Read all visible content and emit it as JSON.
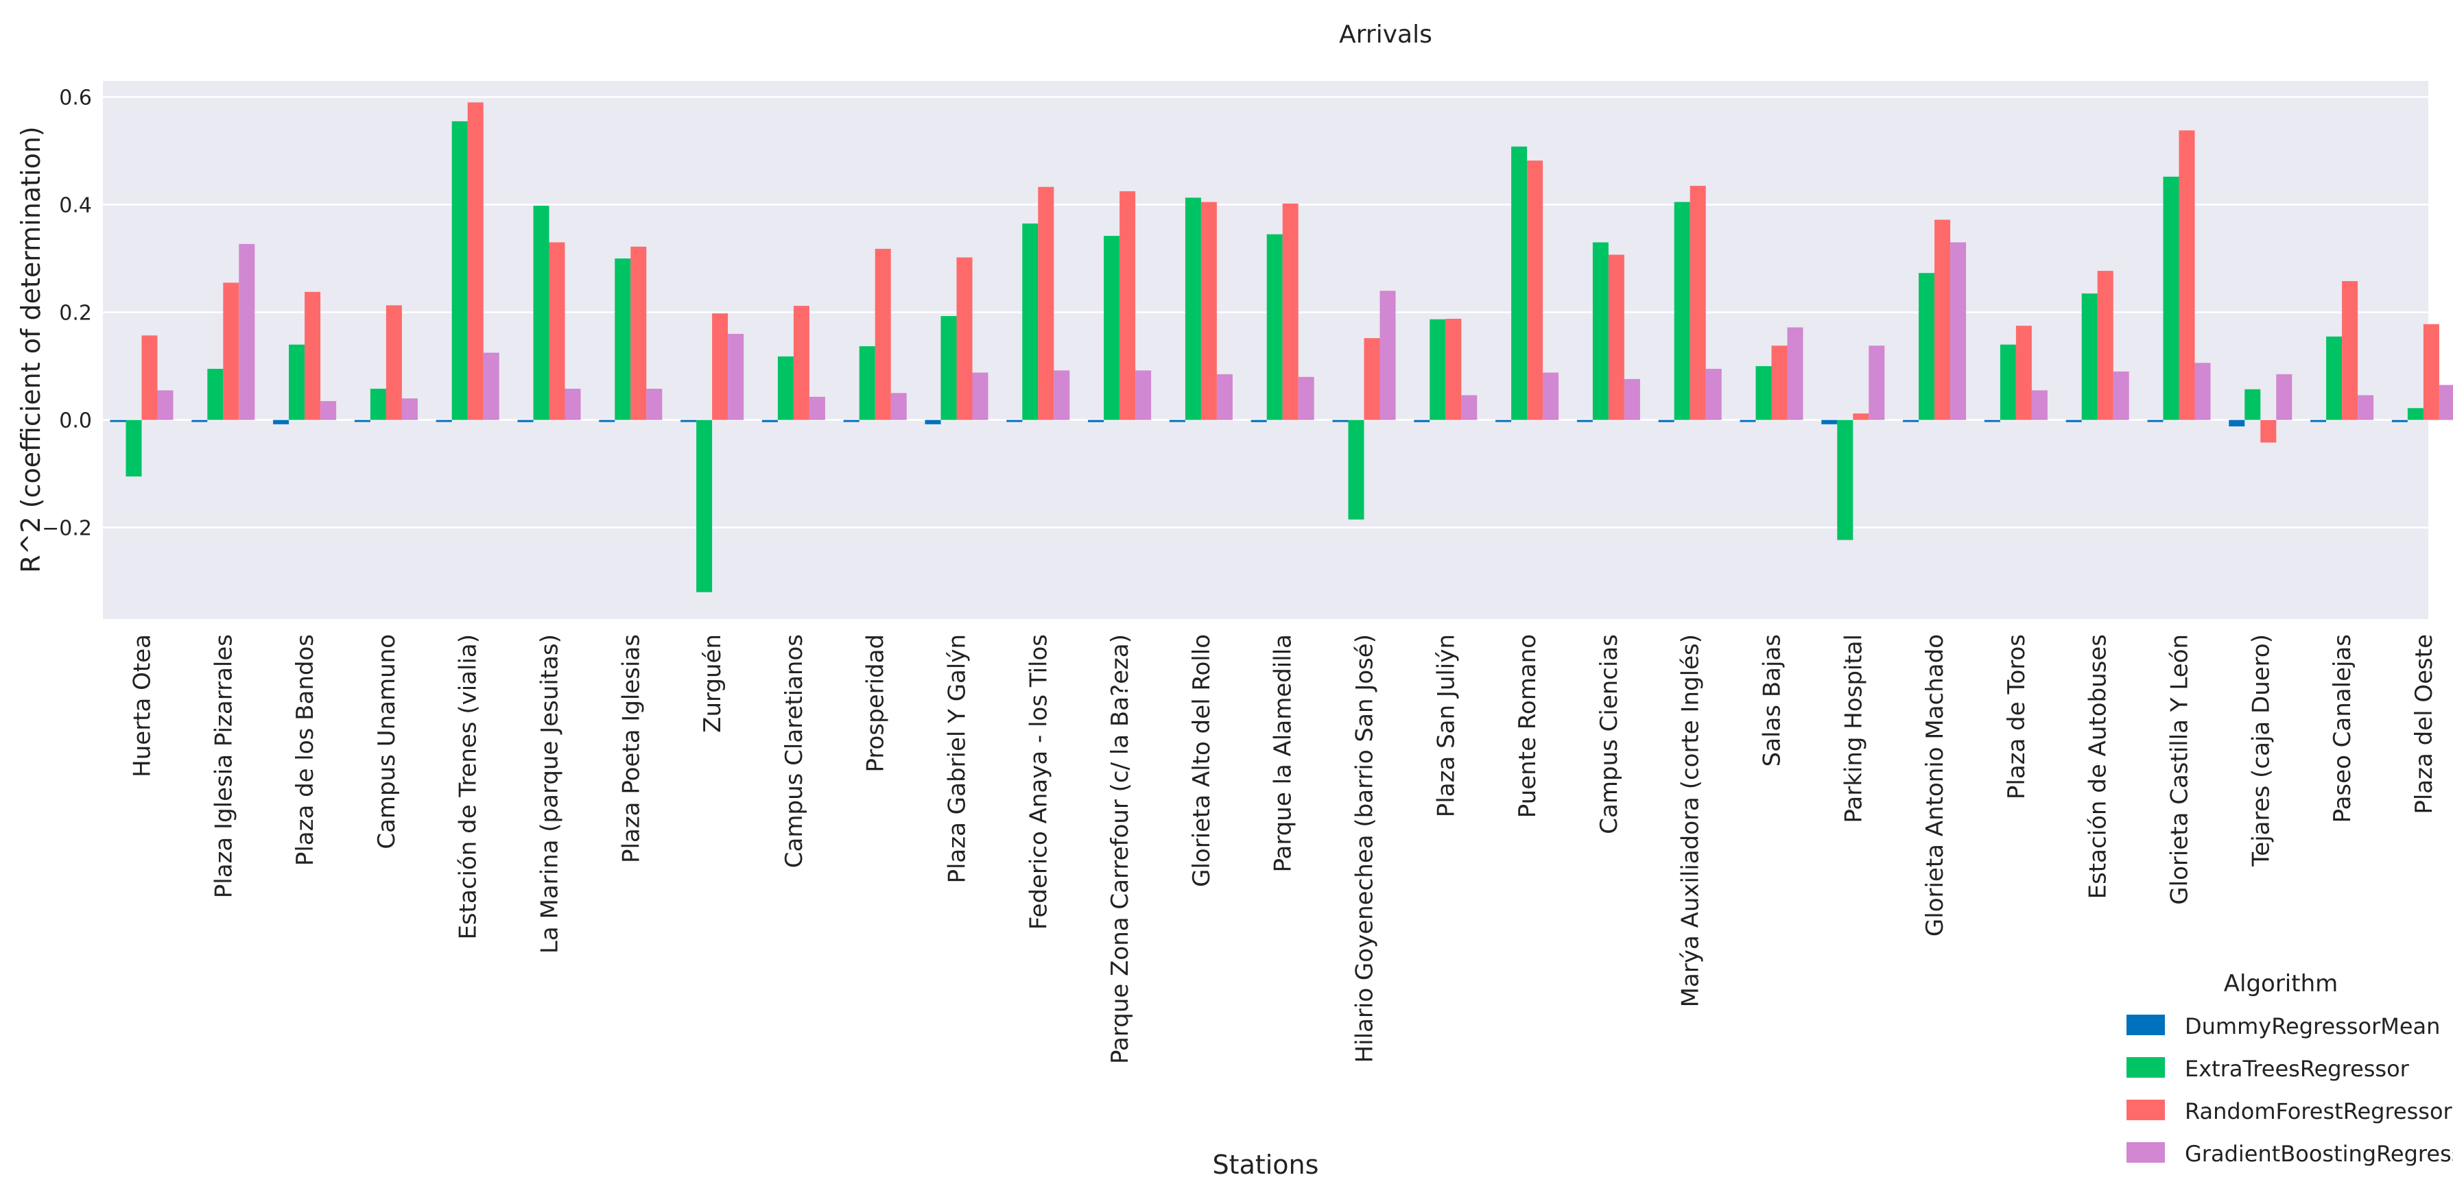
{
  "chart_data": {
    "type": "bar",
    "title": "Arrivals",
    "xlabel": "Stations",
    "ylabel": "R^2 (coefficient of determination)",
    "ylim": [
      -0.37,
      0.63
    ],
    "yticks": [
      -0.2,
      0.0,
      0.2,
      0.4,
      0.6
    ],
    "ytick_labels": [
      "−0.2",
      "0.0",
      "0.2",
      "0.4",
      "0.6"
    ],
    "grid": true,
    "legend_title": "Algorithm",
    "legend_position": "bottom-right",
    "categories": [
      "Huerta Otea",
      "Plaza Iglesia Pizarrales",
      "Plaza de los Bandos",
      "Campus Unamuno",
      "Estación de Trenes (vialia)",
      "La Marina (parque Jesuitas)",
      "Plaza Poeta Iglesias",
      "Zurguén",
      "Campus Claretianos",
      "Prosperidad",
      "Plaza Gabriel Y Galýn",
      "Federico Anaya - los Tilos",
      "Parque Zona Carrefour (c/ la Ba?eza)",
      "Glorieta Alto del Rollo",
      "Parque la Alamedilla",
      "Hilario Goyenechea (barrio San José)",
      "Plaza San Juliýn",
      "Puente Romano",
      "Campus Ciencias",
      "Marýa Auxiliadora (corte Inglés)",
      "Salas Bajas",
      "Parking Hospital",
      "Glorieta Antonio Machado",
      "Plaza de Toros",
      "Estación de Autobuses",
      "Glorieta Castilla Y León",
      "Tejares (caja Duero)",
      "Paseo Canalejas",
      "Plaza del Oeste"
    ],
    "series": [
      {
        "name": "DummyRegressorMean",
        "color": "#0072bd",
        "values": [
          -0.001,
          -0.003,
          -0.008,
          -0.003,
          -0.002,
          -0.004,
          -0.002,
          -0.002,
          -0.004,
          -0.002,
          -0.008,
          -0.002,
          -0.004,
          -0.002,
          -0.004,
          -0.003,
          -0.004,
          -0.002,
          -0.002,
          -0.004,
          -0.002,
          -0.008,
          -0.003,
          -0.002,
          -0.004,
          -0.002,
          -0.012,
          -0.002,
          -0.004
        ]
      },
      {
        "name": "ExtraTreesRegressor",
        "color": "#00c364",
        "values": [
          -0.105,
          0.095,
          0.14,
          0.058,
          0.555,
          0.398,
          0.3,
          -0.32,
          0.118,
          0.137,
          0.193,
          0.365,
          0.342,
          0.413,
          0.345,
          -0.185,
          0.187,
          0.508,
          0.33,
          0.405,
          0.1,
          -0.223,
          0.273,
          0.14,
          0.235,
          0.452,
          0.057,
          0.155,
          0.022
        ]
      },
      {
        "name": "RandomForestRegressor",
        "color": "#fe6a6a",
        "values": [
          0.157,
          0.255,
          0.238,
          0.213,
          0.59,
          0.33,
          0.322,
          0.198,
          0.212,
          0.318,
          0.302,
          0.433,
          0.425,
          0.405,
          0.402,
          0.152,
          0.188,
          0.482,
          0.307,
          0.435,
          0.138,
          0.012,
          0.372,
          0.175,
          0.277,
          0.538,
          -0.042,
          0.258,
          0.178
        ]
      },
      {
        "name": "GradientBoostingRegressor",
        "color": "#d187d1",
        "values": [
          0.055,
          0.327,
          0.035,
          0.04,
          0.125,
          0.058,
          0.058,
          0.16,
          0.043,
          0.05,
          0.088,
          0.092,
          0.092,
          0.085,
          0.08,
          0.24,
          0.046,
          0.088,
          0.076,
          0.095,
          0.172,
          0.138,
          0.33,
          0.055,
          0.09,
          0.106,
          0.085,
          0.046,
          0.065
        ]
      }
    ]
  }
}
